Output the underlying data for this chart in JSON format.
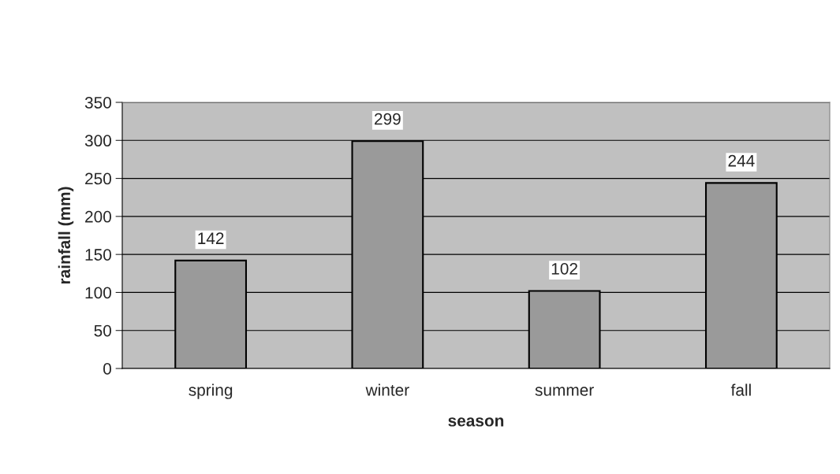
{
  "chart_data": {
    "type": "bar",
    "xlabel": "season",
    "ylabel": "rainfall (mm)",
    "categories": [
      "spring",
      "winter",
      "summer",
      "fall"
    ],
    "values": [
      142,
      299,
      102,
      244
    ],
    "color": "#9a9a9a",
    "ylim": [
      0,
      350
    ],
    "yticks": [
      0,
      50,
      100,
      150,
      200,
      250,
      300,
      350
    ],
    "grid": "y",
    "data_labels": true
  }
}
